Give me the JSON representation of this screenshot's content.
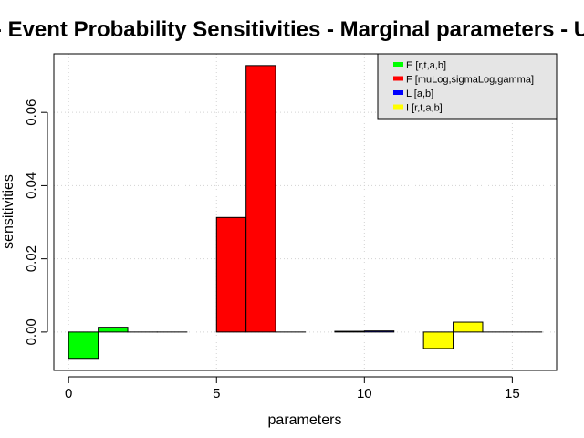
{
  "chart_data": {
    "type": "bar",
    "title": "- Event Probability Sensitivities - Marginal parameters - U",
    "xlabel": "parameters",
    "ylabel": "sensitivities",
    "xlim": [
      -0.5,
      16.5
    ],
    "ylim": [
      -0.0105,
      0.076
    ],
    "xticks": [
      0,
      5,
      10,
      15
    ],
    "yticks": [
      0.0,
      0.02,
      0.04,
      0.06
    ],
    "ytick_labels": [
      "0.00",
      "0.02",
      "0.04",
      "0.06"
    ],
    "grid": true,
    "legend_position": "top-right",
    "series": [
      {
        "name": "E [r,t,a,b]",
        "color": "#00ff00",
        "bars": [
          {
            "x": 0,
            "value": -0.0072
          },
          {
            "x": 1,
            "value": 0.0013
          },
          {
            "x": 2,
            "value": 0.0
          },
          {
            "x": 3,
            "value": 0.0
          }
        ]
      },
      {
        "name": "F [muLog,sigmaLog,gamma]",
        "color": "#ff0000",
        "bars": [
          {
            "x": 5,
            "value": 0.0313
          },
          {
            "x": 6,
            "value": 0.0728
          },
          {
            "x": 7,
            "value": 0.0
          }
        ]
      },
      {
        "name": "L [a,b]",
        "color": "#0000ff",
        "bars": [
          {
            "x": 9,
            "value": 0.0002
          },
          {
            "x": 10,
            "value": 0.0003
          }
        ]
      },
      {
        "name": "I [r,t,a,b]",
        "color": "#ffff00",
        "bars": [
          {
            "x": 12,
            "value": -0.0045
          },
          {
            "x": 13,
            "value": 0.0027
          },
          {
            "x": 14,
            "value": 0.0
          },
          {
            "x": 15,
            "value": 0.0
          }
        ]
      }
    ]
  }
}
